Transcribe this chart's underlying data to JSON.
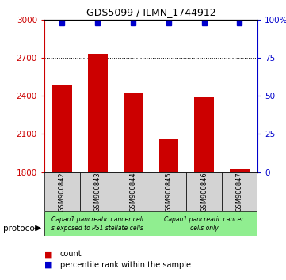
{
  "title": "GDS5099 / ILMN_1744912",
  "samples": [
    "GSM900842",
    "GSM900843",
    "GSM900844",
    "GSM900845",
    "GSM900846",
    "GSM900847"
  ],
  "counts": [
    2490,
    2730,
    2420,
    2060,
    2390,
    1820
  ],
  "percentile_ranks": [
    98,
    98,
    98,
    98,
    98,
    98
  ],
  "ylim_left": [
    1800,
    3000
  ],
  "ylim_right": [
    0,
    100
  ],
  "yticks_left": [
    1800,
    2100,
    2400,
    2700,
    3000
  ],
  "yticks_right": [
    0,
    25,
    50,
    75,
    100
  ],
  "bar_color": "#cc0000",
  "dot_color": "#0000cc",
  "bg_color": "#ffffff",
  "tick_color_left": "#cc0000",
  "tick_color_right": "#0000cc",
  "group_texts": [
    "Capan1 pancreatic cancer cell\ns exposed to PS1 stellate cells",
    "Capan1 pancreatic cancer\ncells only"
  ],
  "group_color": "#90ee90",
  "legend_count": "count",
  "legend_pct": "percentile rank within the sample",
  "protocol_label": "protocol"
}
